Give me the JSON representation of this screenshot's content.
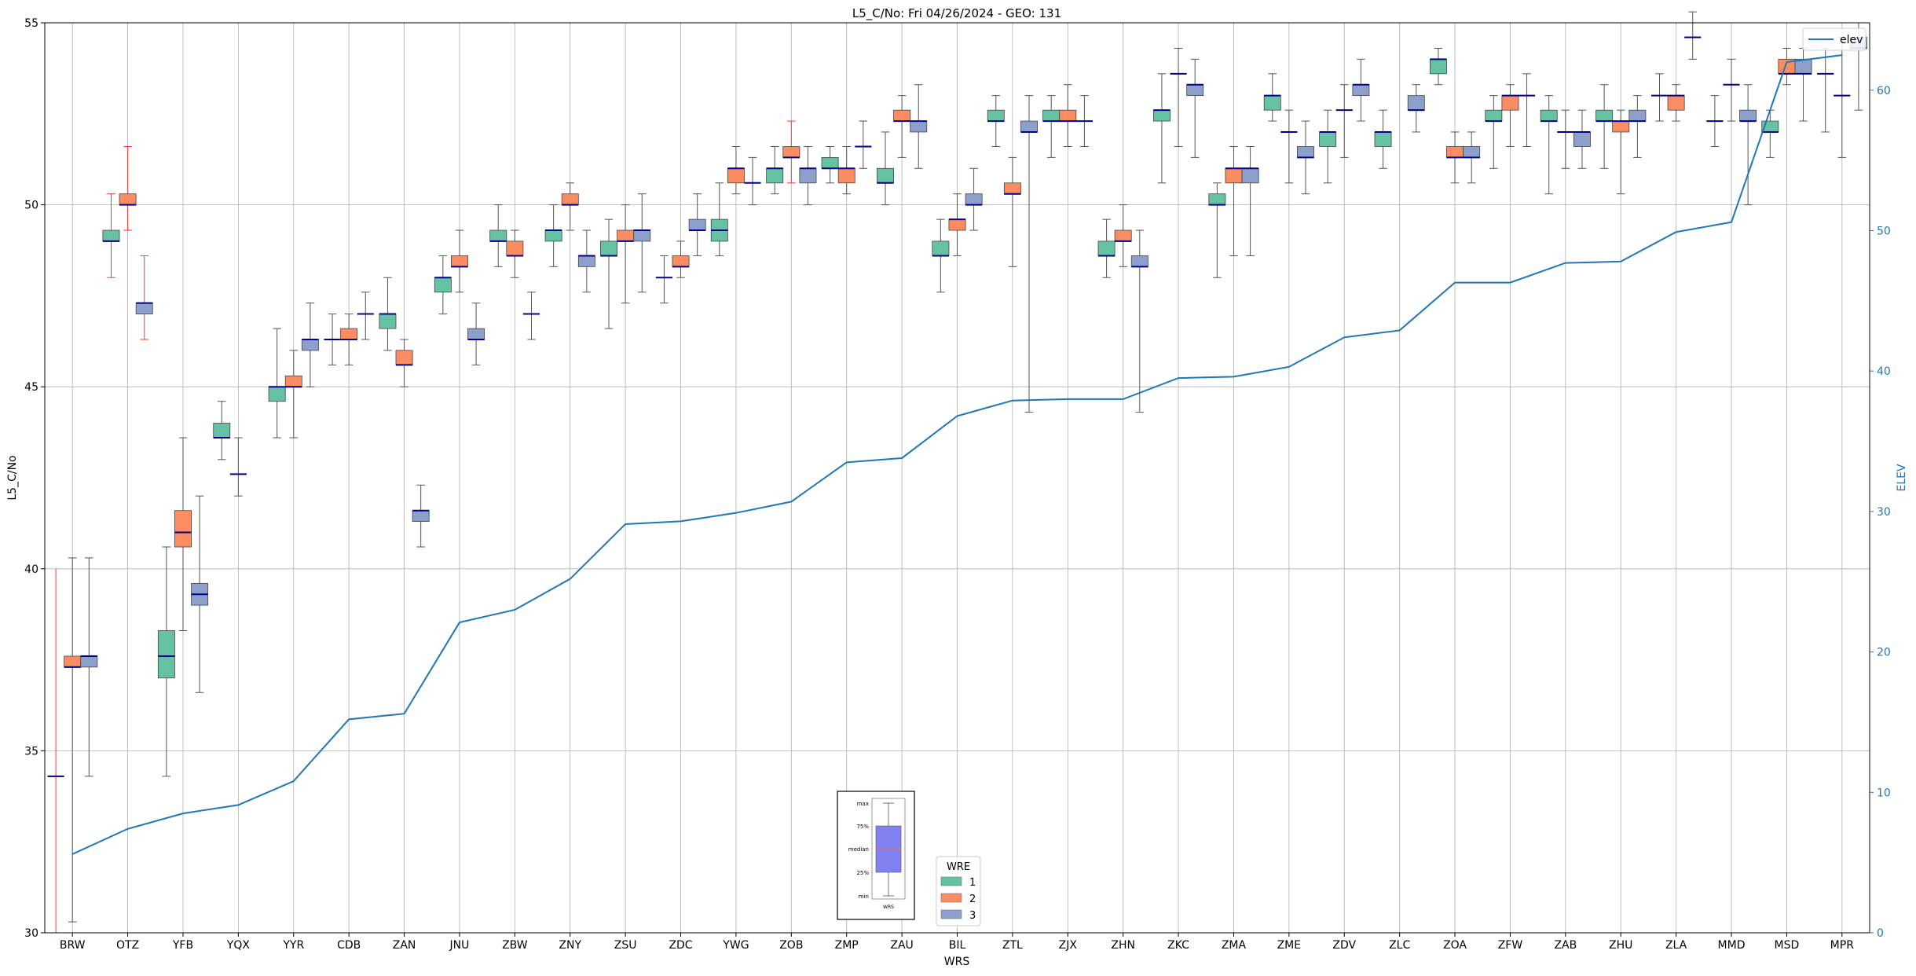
{
  "chart_data": {
    "type": "box",
    "title": "L5_C/No: Fri 04/26/2024 - GEO: 131",
    "xlabel": "WRS",
    "ylabel": "L5_C/No",
    "y2label": "ELEV",
    "ylim": [
      30,
      55
    ],
    "y2lim": [
      0,
      64.8
    ],
    "yticks": [
      30,
      35,
      40,
      45,
      50,
      55
    ],
    "y2ticks": [
      0,
      10,
      20,
      30,
      40,
      50,
      60
    ],
    "grid": true,
    "categories": [
      "BRW",
      "OTZ",
      "YFB",
      "YQX",
      "YYR",
      "CDB",
      "ZAN",
      "JNU",
      "ZBW",
      "ZNY",
      "ZSU",
      "ZDC",
      "YWG",
      "ZOB",
      "ZMP",
      "ZAU",
      "BIL",
      "ZTL",
      "ZJX",
      "ZHN",
      "ZKC",
      "ZMA",
      "ZME",
      "ZDV",
      "ZLC",
      "ZOA",
      "ZFW",
      "ZAB",
      "ZHU",
      "ZLA",
      "MMD",
      "MSD",
      "MPR"
    ],
    "series": [
      {
        "name": "1",
        "color": "#66c2a5",
        "boxes": [
          {
            "cat": "BRW",
            "min": 34.3,
            "q1": 34.3,
            "med": 34.3,
            "q3": 34.3,
            "max": 34.3,
            "red": true,
            "redmin": 30.0,
            "redmax": 40.0
          },
          {
            "cat": "OTZ",
            "min": 48.0,
            "q1": 49.0,
            "med": 49.0,
            "q3": 49.3,
            "max": 50.3,
            "red": true
          },
          {
            "cat": "YFB",
            "min": 34.3,
            "q1": 37.0,
            "med": 37.6,
            "q3": 38.3,
            "max": 40.6
          },
          {
            "cat": "YQX",
            "min": 43.0,
            "q1": 43.6,
            "med": 43.6,
            "q3": 44.0,
            "max": 44.6
          },
          {
            "cat": "YYR",
            "min": 43.6,
            "q1": 44.6,
            "med": 45.0,
            "q3": 45.0,
            "max": 46.6
          },
          {
            "cat": "CDB",
            "min": 45.6,
            "q1": 46.3,
            "med": 46.3,
            "q3": 46.3,
            "max": 47.0
          },
          {
            "cat": "ZAN",
            "min": 46.0,
            "q1": 46.6,
            "med": 47.0,
            "q3": 47.0,
            "max": 48.0
          },
          {
            "cat": "JNU",
            "min": 47.0,
            "q1": 47.6,
            "med": 48.0,
            "q3": 48.0,
            "max": 48.6
          },
          {
            "cat": "ZBW",
            "min": 48.3,
            "q1": 49.0,
            "med": 49.0,
            "q3": 49.3,
            "max": 50.0
          },
          {
            "cat": "ZNY",
            "min": 48.3,
            "q1": 49.0,
            "med": 49.3,
            "q3": 49.3,
            "max": 50.0
          },
          {
            "cat": "ZSU",
            "min": 46.6,
            "q1": 48.6,
            "med": 48.6,
            "q3": 49.0,
            "max": 49.6
          },
          {
            "cat": "ZDC",
            "min": 47.3,
            "q1": 48.0,
            "med": 48.0,
            "q3": 48.0,
            "max": 48.6
          },
          {
            "cat": "YWG",
            "min": 48.6,
            "q1": 49.0,
            "med": 49.3,
            "q3": 49.6,
            "max": 50.6
          },
          {
            "cat": "ZOB",
            "min": 50.3,
            "q1": 50.6,
            "med": 51.0,
            "q3": 51.0,
            "max": 51.6
          },
          {
            "cat": "ZMP",
            "min": 50.6,
            "q1": 51.0,
            "med": 51.0,
            "q3": 51.3,
            "max": 51.6
          },
          {
            "cat": "ZAU",
            "min": 50.0,
            "q1": 50.6,
            "med": 50.6,
            "q3": 51.0,
            "max": 52.0
          },
          {
            "cat": "BIL",
            "min": 47.6,
            "q1": 48.6,
            "med": 48.6,
            "q3": 49.0,
            "max": 49.6
          },
          {
            "cat": "ZTL",
            "min": 51.6,
            "q1": 52.3,
            "med": 52.3,
            "q3": 52.6,
            "max": 53.0
          },
          {
            "cat": "ZJX",
            "min": 51.3,
            "q1": 52.3,
            "med": 52.3,
            "q3": 52.6,
            "max": 53.0
          },
          {
            "cat": "ZHN",
            "min": 48.0,
            "q1": 48.6,
            "med": 48.6,
            "q3": 49.0,
            "max": 49.6
          },
          {
            "cat": "ZKC",
            "min": 50.6,
            "q1": 52.3,
            "med": 52.6,
            "q3": 52.6,
            "max": 53.6
          },
          {
            "cat": "ZMA",
            "min": 48.0,
            "q1": 50.0,
            "med": 50.0,
            "q3": 50.3,
            "max": 50.6
          },
          {
            "cat": "ZME",
            "min": 52.3,
            "q1": 52.6,
            "med": 53.0,
            "q3": 53.0,
            "max": 53.6
          },
          {
            "cat": "ZDV",
            "min": 50.6,
            "q1": 51.6,
            "med": 52.0,
            "q3": 52.0,
            "max": 52.6
          },
          {
            "cat": "ZLC",
            "min": 51.0,
            "q1": 51.6,
            "med": 52.0,
            "q3": 52.0,
            "max": 52.6
          },
          {
            "cat": "ZOA",
            "min": 53.3,
            "q1": 53.6,
            "med": 54.0,
            "q3": 54.0,
            "max": 54.3
          },
          {
            "cat": "ZFW",
            "min": 51.0,
            "q1": 52.3,
            "med": 52.3,
            "q3": 52.6,
            "max": 53.0
          },
          {
            "cat": "ZAB",
            "min": 50.3,
            "q1": 52.3,
            "med": 52.3,
            "q3": 52.6,
            "max": 53.0
          },
          {
            "cat": "ZHU",
            "min": 51.0,
            "q1": 52.3,
            "med": 52.3,
            "q3": 52.6,
            "max": 53.3
          },
          {
            "cat": "ZLA",
            "min": 52.3,
            "q1": 53.0,
            "med": 53.0,
            "q3": 53.0,
            "max": 53.6
          },
          {
            "cat": "MMD",
            "min": 51.6,
            "q1": 52.3,
            "med": 52.3,
            "q3": 52.3,
            "max": 53.0
          },
          {
            "cat": "MSD",
            "min": 51.3,
            "q1": 52.0,
            "med": 52.0,
            "q3": 52.3,
            "max": 52.6
          },
          {
            "cat": "MPR",
            "min": 52.0,
            "q1": 53.6,
            "med": 53.6,
            "q3": 53.6,
            "max": 54.3
          }
        ]
      },
      {
        "name": "2",
        "color": "#fc8d62",
        "boxes": [
          {
            "cat": "BRW",
            "min": 30.3,
            "q1": 37.3,
            "med": 37.3,
            "q3": 37.6,
            "max": 40.3
          },
          {
            "cat": "OTZ",
            "min": 49.3,
            "q1": 50.0,
            "med": 50.0,
            "q3": 50.3,
            "max": 51.6,
            "red": true
          },
          {
            "cat": "YFB",
            "min": 38.3,
            "q1": 40.6,
            "med": 41.0,
            "q3": 41.6,
            "max": 43.6
          },
          {
            "cat": "YQX",
            "min": 42.0,
            "q1": 42.6,
            "med": 42.6,
            "q3": 42.6,
            "max": 43.6
          },
          {
            "cat": "YYR",
            "min": 43.6,
            "q1": 45.0,
            "med": 45.0,
            "q3": 45.3,
            "max": 46.0
          },
          {
            "cat": "CDB",
            "min": 45.6,
            "q1": 46.3,
            "med": 46.3,
            "q3": 46.6,
            "max": 47.0
          },
          {
            "cat": "ZAN",
            "min": 45.0,
            "q1": 45.6,
            "med": 45.6,
            "q3": 46.0,
            "max": 46.3
          },
          {
            "cat": "JNU",
            "min": 47.6,
            "q1": 48.3,
            "med": 48.3,
            "q3": 48.6,
            "max": 49.3
          },
          {
            "cat": "ZBW",
            "min": 48.0,
            "q1": 48.6,
            "med": 48.6,
            "q3": 49.0,
            "max": 49.3
          },
          {
            "cat": "ZNY",
            "min": 49.3,
            "q1": 50.0,
            "med": 50.0,
            "q3": 50.3,
            "max": 50.6
          },
          {
            "cat": "ZSU",
            "min": 47.3,
            "q1": 49.0,
            "med": 49.0,
            "q3": 49.3,
            "max": 50.0
          },
          {
            "cat": "ZDC",
            "min": 48.0,
            "q1": 48.3,
            "med": 48.3,
            "q3": 48.6,
            "max": 49.0
          },
          {
            "cat": "YWG",
            "min": 50.3,
            "q1": 50.6,
            "med": 51.0,
            "q3": 51.0,
            "max": 51.6
          },
          {
            "cat": "ZOB",
            "min": 50.6,
            "q1": 51.3,
            "med": 51.3,
            "q3": 51.6,
            "max": 52.3,
            "red": true
          },
          {
            "cat": "ZMP",
            "min": 50.3,
            "q1": 50.6,
            "med": 51.0,
            "q3": 51.0,
            "max": 51.6
          },
          {
            "cat": "ZAU",
            "min": 51.3,
            "q1": 52.3,
            "med": 52.3,
            "q3": 52.6,
            "max": 53.0
          },
          {
            "cat": "BIL",
            "min": 48.6,
            "q1": 49.3,
            "med": 49.6,
            "q3": 49.6,
            "max": 50.3
          },
          {
            "cat": "ZTL",
            "min": 48.3,
            "q1": 50.3,
            "med": 50.3,
            "q3": 50.6,
            "max": 51.3
          },
          {
            "cat": "ZJX",
            "min": 51.6,
            "q1": 52.3,
            "med": 52.3,
            "q3": 52.6,
            "max": 53.3
          },
          {
            "cat": "ZHN",
            "min": 48.3,
            "q1": 49.0,
            "med": 49.0,
            "q3": 49.3,
            "max": 50.0
          },
          {
            "cat": "ZKC",
            "min": 51.6,
            "q1": 53.6,
            "med": 53.6,
            "q3": 53.6,
            "max": 54.3
          },
          {
            "cat": "ZMA",
            "min": 48.6,
            "q1": 50.6,
            "med": 51.0,
            "q3": 51.0,
            "max": 51.6
          },
          {
            "cat": "ZME",
            "min": 50.6,
            "q1": 52.0,
            "med": 52.0,
            "q3": 52.0,
            "max": 52.6
          },
          {
            "cat": "ZDV",
            "min": 51.3,
            "q1": 52.6,
            "med": 52.6,
            "q3": 52.6,
            "max": 53.3
          },
          {
            "cat": "ZLC",
            "min": null
          },
          {
            "cat": "ZOA",
            "min": 50.6,
            "q1": 51.3,
            "med": 51.3,
            "q3": 51.6,
            "max": 52.0
          },
          {
            "cat": "ZFW",
            "min": 51.6,
            "q1": 52.6,
            "med": 53.0,
            "q3": 53.0,
            "max": 53.3
          },
          {
            "cat": "ZAB",
            "min": 51.0,
            "q1": 52.0,
            "med": 52.0,
            "q3": 52.0,
            "max": 52.6
          },
          {
            "cat": "ZHU",
            "min": 50.3,
            "q1": 52.0,
            "med": 52.3,
            "q3": 52.3,
            "max": 52.6
          },
          {
            "cat": "ZLA",
            "min": 52.3,
            "q1": 52.6,
            "med": 53.0,
            "q3": 53.0,
            "max": 53.3
          },
          {
            "cat": "MMD",
            "min": 52.3,
            "q1": 53.3,
            "med": 53.3,
            "q3": 53.3,
            "max": 54.0
          },
          {
            "cat": "MSD",
            "min": 53.3,
            "q1": 53.6,
            "med": 53.6,
            "q3": 54.0,
            "max": 54.3
          },
          {
            "cat": "MPR",
            "min": 51.3,
            "q1": 53.0,
            "med": 53.0,
            "q3": 53.0,
            "max": 54.6
          }
        ]
      },
      {
        "name": "3",
        "color": "#8da0cb",
        "boxes": [
          {
            "cat": "BRW",
            "min": 34.3,
            "q1": 37.3,
            "med": 37.6,
            "q3": 37.6,
            "max": 40.3
          },
          {
            "cat": "OTZ",
            "min": 46.3,
            "q1": 47.0,
            "med": 47.3,
            "q3": 47.3,
            "max": 48.6,
            "red": true
          },
          {
            "cat": "YFB",
            "min": 36.6,
            "q1": 39.0,
            "med": 39.3,
            "q3": 39.6,
            "max": 42.0
          },
          {
            "cat": "YQX",
            "min": null
          },
          {
            "cat": "YYR",
            "min": 45.0,
            "q1": 46.0,
            "med": 46.3,
            "q3": 46.3,
            "max": 47.3
          },
          {
            "cat": "CDB",
            "min": 46.3,
            "q1": 47.0,
            "med": 47.0,
            "q3": 47.0,
            "max": 47.6
          },
          {
            "cat": "ZAN",
            "min": 40.6,
            "q1": 41.3,
            "med": 41.6,
            "q3": 41.6,
            "max": 42.3
          },
          {
            "cat": "JNU",
            "min": 45.6,
            "q1": 46.3,
            "med": 46.3,
            "q3": 46.6,
            "max": 47.3
          },
          {
            "cat": "ZBW",
            "min": 46.3,
            "q1": 47.0,
            "med": 47.0,
            "q3": 47.0,
            "max": 47.6
          },
          {
            "cat": "ZNY",
            "min": 47.6,
            "q1": 48.3,
            "med": 48.6,
            "q3": 48.6,
            "max": 49.3
          },
          {
            "cat": "ZSU",
            "min": 47.6,
            "q1": 49.0,
            "med": 49.3,
            "q3": 49.3,
            "max": 50.3
          },
          {
            "cat": "ZDC",
            "min": 48.6,
            "q1": 49.3,
            "med": 49.3,
            "q3": 49.6,
            "max": 50.3
          },
          {
            "cat": "YWG",
            "min": 50.0,
            "q1": 50.6,
            "med": 50.6,
            "q3": 50.6,
            "max": 51.3
          },
          {
            "cat": "ZOB",
            "min": 50.0,
            "q1": 50.6,
            "med": 51.0,
            "q3": 51.0,
            "max": 51.6
          },
          {
            "cat": "ZMP",
            "min": 51.0,
            "q1": 51.6,
            "med": 51.6,
            "q3": 51.6,
            "max": 52.3
          },
          {
            "cat": "ZAU",
            "min": 51.0,
            "q1": 52.0,
            "med": 52.3,
            "q3": 52.3,
            "max": 53.3
          },
          {
            "cat": "BIL",
            "min": 49.3,
            "q1": 50.0,
            "med": 50.0,
            "q3": 50.3,
            "max": 51.0
          },
          {
            "cat": "ZTL",
            "min": 44.3,
            "q1": 52.0,
            "med": 52.0,
            "q3": 52.3,
            "max": 53.0
          },
          {
            "cat": "ZJX",
            "min": 51.6,
            "q1": 52.3,
            "med": 52.3,
            "q3": 52.3,
            "max": 53.0
          },
          {
            "cat": "ZHN",
            "min": 44.3,
            "q1": 48.3,
            "med": 48.3,
            "q3": 48.6,
            "max": 49.3
          },
          {
            "cat": "ZKC",
            "min": 51.3,
            "q1": 53.0,
            "med": 53.3,
            "q3": 53.3,
            "max": 54.0
          },
          {
            "cat": "ZMA",
            "min": 48.6,
            "q1": 50.6,
            "med": 51.0,
            "q3": 51.0,
            "max": 51.6
          },
          {
            "cat": "ZME",
            "min": 50.3,
            "q1": 51.3,
            "med": 51.3,
            "q3": 51.6,
            "max": 52.3
          },
          {
            "cat": "ZDV",
            "min": 52.3,
            "q1": 53.0,
            "med": 53.3,
            "q3": 53.3,
            "max": 54.0
          },
          {
            "cat": "ZLC",
            "min": 52.0,
            "q1": 52.6,
            "med": 52.6,
            "q3": 53.0,
            "max": 53.3
          },
          {
            "cat": "ZOA",
            "min": 50.6,
            "q1": 51.3,
            "med": 51.3,
            "q3": 51.6,
            "max": 52.0
          },
          {
            "cat": "ZFW",
            "min": 51.6,
            "q1": 53.0,
            "med": 53.0,
            "q3": 53.0,
            "max": 53.6
          },
          {
            "cat": "ZAB",
            "min": 51.0,
            "q1": 51.6,
            "med": 52.0,
            "q3": 52.0,
            "max": 52.6
          },
          {
            "cat": "ZHU",
            "min": 51.3,
            "q1": 52.3,
            "med": 52.3,
            "q3": 52.6,
            "max": 53.0
          },
          {
            "cat": "ZLA",
            "min": 54.0,
            "q1": 54.6,
            "med": 54.6,
            "q3": 54.6,
            "max": 55.3
          },
          {
            "cat": "MMD",
            "min": 50.0,
            "q1": 52.3,
            "med": 52.3,
            "q3": 52.6,
            "max": 53.3
          },
          {
            "cat": "MSD",
            "min": 52.3,
            "q1": 53.6,
            "med": 53.6,
            "q3": 54.0,
            "max": 54.3
          },
          {
            "cat": "MPR",
            "min": 52.6,
            "q1": 54.3,
            "med": 54.3,
            "q3": 54.6,
            "max": 55.0
          }
        ]
      }
    ],
    "elev_line": {
      "name": "elev",
      "color": "#1f77b4",
      "values": [
        5.6,
        7.4,
        8.5,
        9.1,
        10.8,
        15.2,
        15.6,
        22.1,
        23.0,
        25.2,
        29.1,
        29.3,
        29.9,
        30.7,
        33.5,
        33.8,
        36.8,
        37.9,
        38.0,
        38.0,
        39.5,
        39.6,
        40.3,
        42.4,
        42.9,
        46.3,
        46.3,
        47.7,
        47.8,
        49.9,
        50.6,
        62.0,
        62.5
      ]
    },
    "legend_elev": {
      "placement": "top-right",
      "label": "elev"
    },
    "legend_wre": {
      "title": "WRE",
      "placement": "bottom-center",
      "entries": [
        "1",
        "2",
        "3"
      ]
    },
    "inset_key": {
      "labels": [
        "max",
        "75%",
        "median",
        "25%",
        "min"
      ],
      "xlabel": "WRS"
    },
    "colors": {
      "median": "#00008b",
      "whisker": "#555555",
      "outlier_whisker": "#ff3333",
      "grid": "#b0b0b0",
      "elev": "#1f77b4",
      "inset_box": "#8080f0"
    }
  }
}
